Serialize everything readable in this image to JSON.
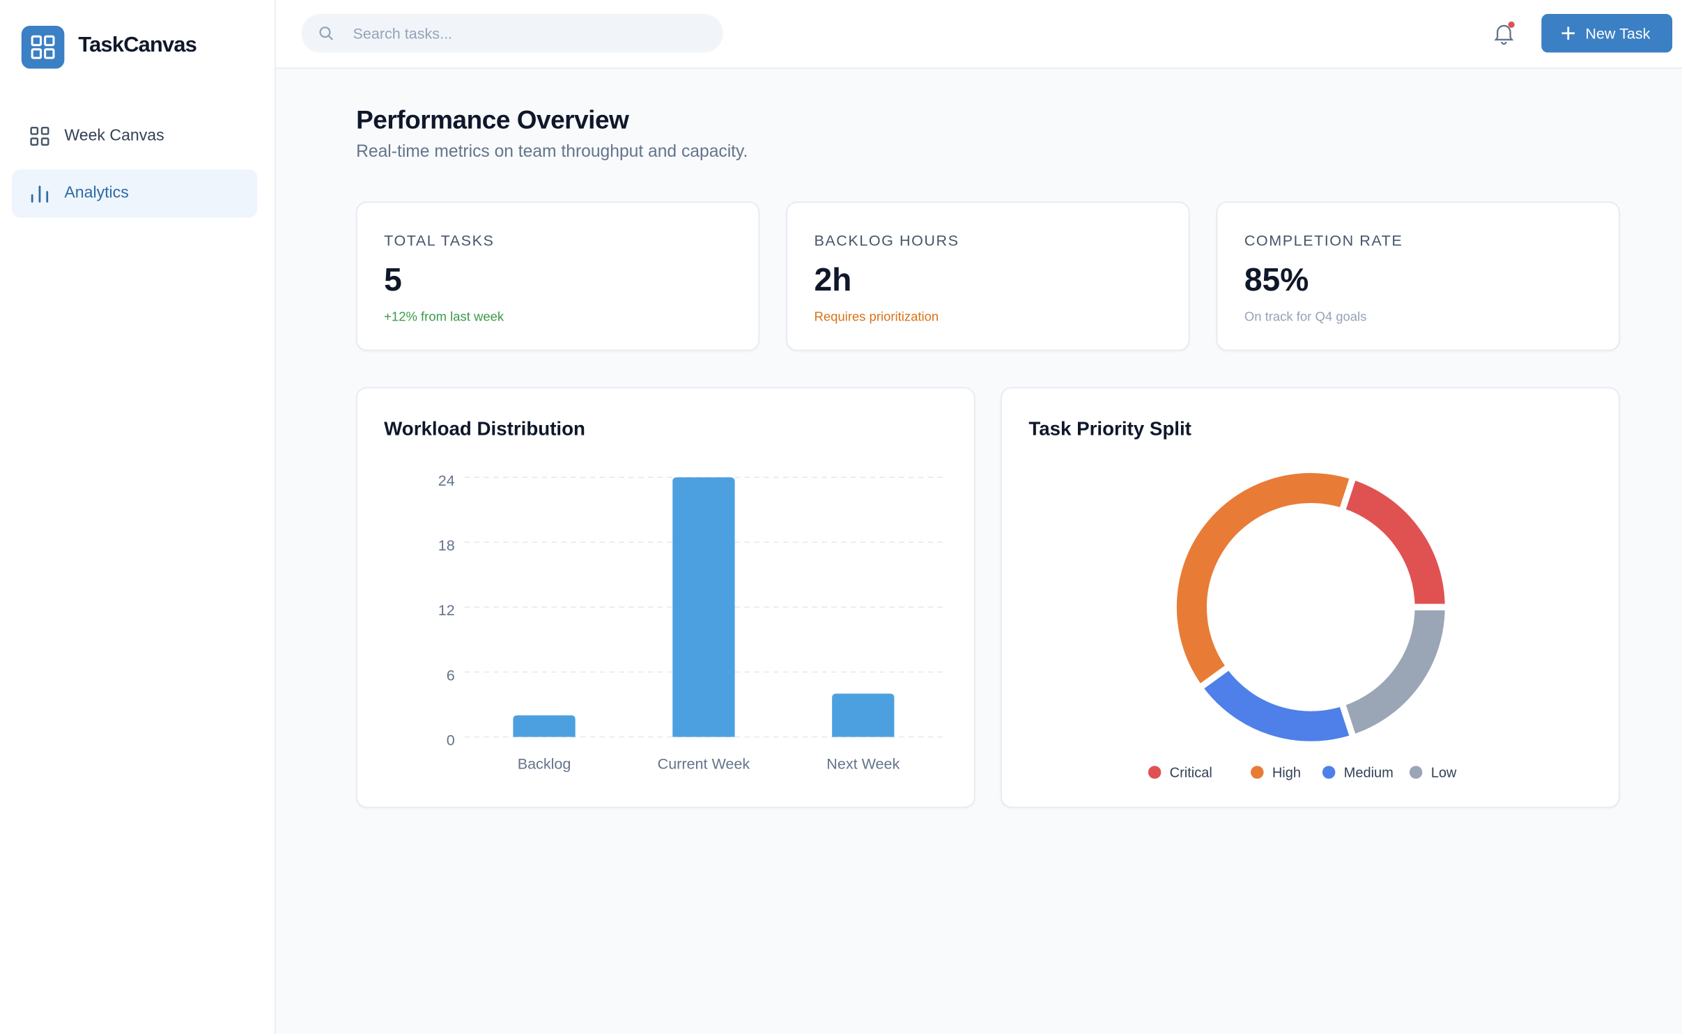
{
  "sidebar": {
    "brand": "TaskCanvas",
    "nav": [
      "Week Canvas",
      "Analytics"
    ]
  },
  "header": {
    "search_placeholder": "Search tasks...",
    "button": "New Task"
  },
  "page": {
    "title": "Performance Overview",
    "subtitle": "Real-time metrics on team throughput and capacity."
  },
  "stats": [
    {
      "label": "TOTAL TASKS",
      "value": "5",
      "note": "+12% from last week"
    },
    {
      "label": "BACKLOG HOURS",
      "value": "2h",
      "note": "Requires prioritization"
    },
    {
      "label": "COMPLETION RATE",
      "value": "85%",
      "note": "On track for Q4 goals"
    }
  ],
  "chart_data": [
    {
      "type": "bar",
      "title": "Workload Distribution",
      "categories": [
        "Backlog",
        "Current Week",
        "Next Week"
      ],
      "values": [
        2,
        24,
        4
      ],
      "color": "#4ca0e0",
      "ylim": [
        0,
        24
      ],
      "yticks": [
        0,
        6,
        12,
        18,
        24
      ],
      "grid": true
    },
    {
      "type": "pie",
      "title": "Task Priority Split",
      "categories": [
        "Critical",
        "High",
        "Medium",
        "Low"
      ],
      "values": [
        1,
        2,
        1,
        1
      ],
      "colors": [
        "#e05252",
        "#e87c36",
        "#4f7fe8",
        "#9aa5b6"
      ],
      "donut": true,
      "legend": "bottom"
    }
  ]
}
